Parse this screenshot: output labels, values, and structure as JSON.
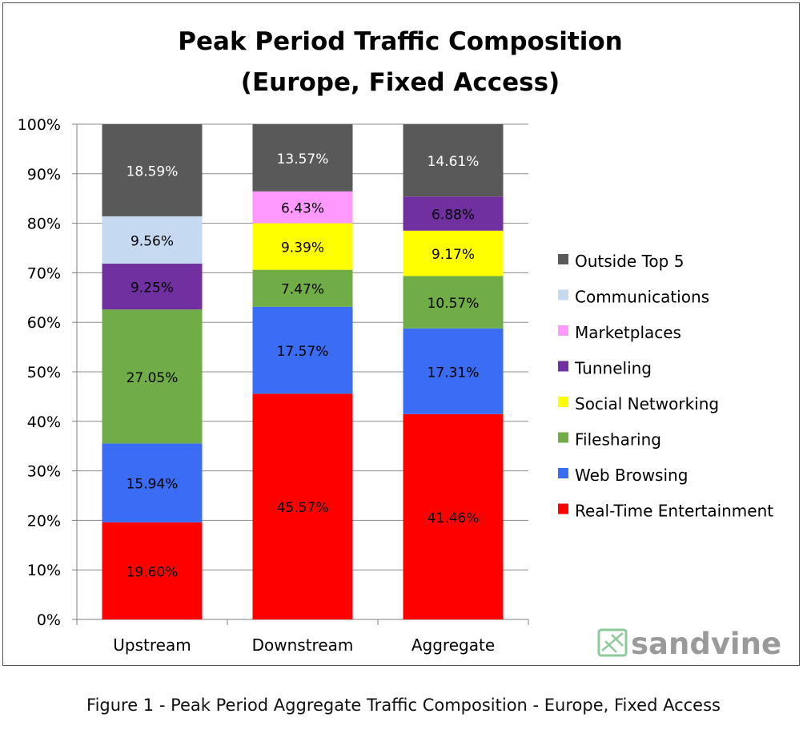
{
  "chart_data": {
    "type": "bar",
    "stacked": true,
    "title_line1": "Peak Period Traffic Composition",
    "title_line2": "(Europe, Fixed Access)",
    "categories": [
      "Upstream",
      "Downstream",
      "Aggregate"
    ],
    "ylim": [
      0,
      100
    ],
    "yticks": [
      "0%",
      "10%",
      "20%",
      "30%",
      "40%",
      "50%",
      "60%",
      "70%",
      "80%",
      "90%",
      "100%"
    ],
    "grid": true,
    "legend_position": "right",
    "series": [
      {
        "name": "Real-Time Entertainment",
        "color": "#ff0000",
        "values": [
          19.6,
          45.57,
          41.46
        ],
        "labels": [
          "19.60%",
          "45.57%",
          "41.46%"
        ]
      },
      {
        "name": "Web Browsing",
        "color": "#3a6cf4",
        "values": [
          15.94,
          17.57,
          17.31
        ],
        "labels": [
          "15.94%",
          "17.57%",
          "17.31%"
        ]
      },
      {
        "name": "Filesharing",
        "color": "#70ad47",
        "values": [
          27.05,
          7.47,
          10.57
        ],
        "labels": [
          "27.05%",
          "7.47%",
          "10.57%"
        ]
      },
      {
        "name": "Social Networking",
        "color": "#ffff00",
        "values": [
          0,
          9.39,
          9.17
        ],
        "labels": [
          "",
          "9.39%",
          "9.17%"
        ]
      },
      {
        "name": "Tunneling",
        "color": "#7030a0",
        "values": [
          9.25,
          0,
          6.88
        ],
        "labels": [
          "9.25%",
          "",
          "6.88%"
        ]
      },
      {
        "name": "Marketplaces",
        "color": "#ff99ff",
        "values": [
          0,
          6.43,
          0
        ],
        "labels": [
          "",
          "6.43%",
          ""
        ]
      },
      {
        "name": "Communications",
        "color": "#c5d9f1",
        "values": [
          9.56,
          0,
          0
        ],
        "labels": [
          "9.56%",
          "",
          ""
        ]
      },
      {
        "name": "Outside Top 5",
        "color": "#595959",
        "values": [
          18.59,
          13.57,
          14.61
        ],
        "labels": [
          "18.59%",
          "13.57%",
          "14.61%"
        ]
      }
    ],
    "legend_order": [
      "Outside Top 5",
      "Communications",
      "Marketplaces",
      "Tunneling",
      "Social Networking",
      "Filesharing",
      "Web Browsing",
      "Real-Time Entertainment"
    ]
  },
  "logo": {
    "text": "sandvine",
    "color": "#9a9a9a",
    "accent": "#8fc99a"
  },
  "caption": "Figure 1 - Peak Period Aggregate Traffic Composition - Europe, Fixed Access"
}
